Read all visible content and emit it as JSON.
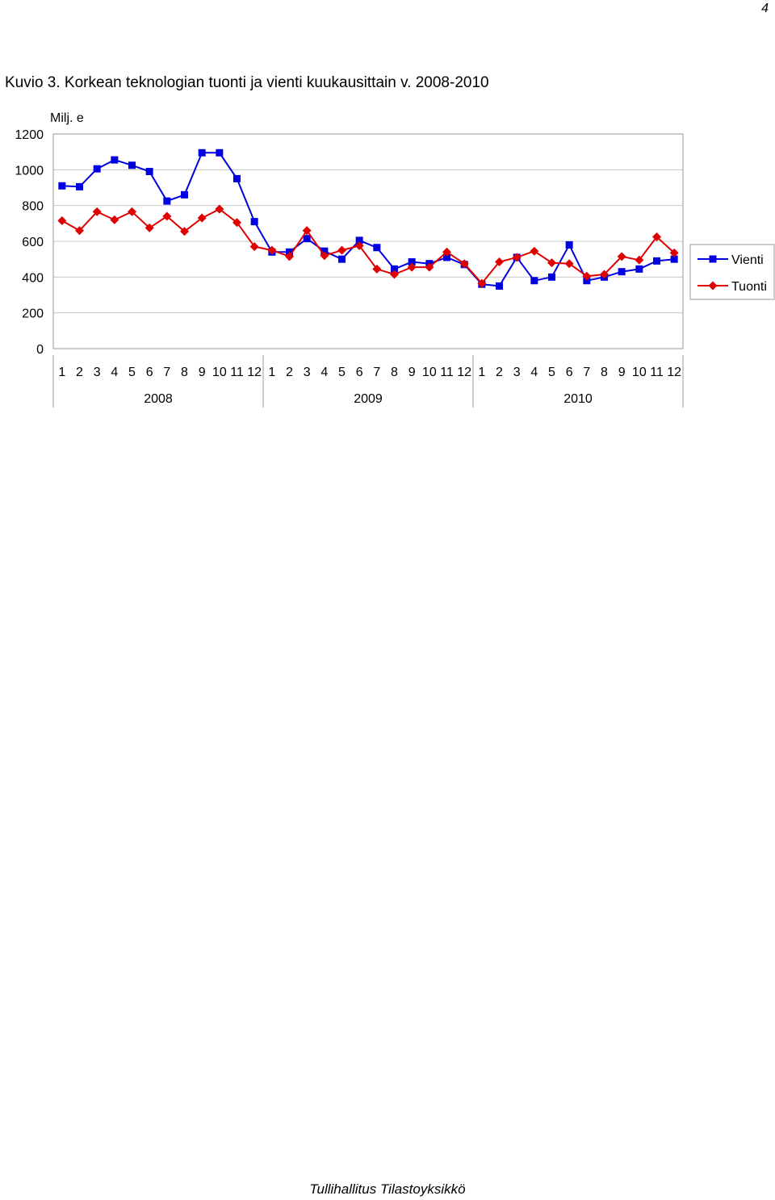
{
  "page_number": "4",
  "figure_title": "Kuvio 3. Korkean teknologian tuonti ja vienti kuukausittain v. 2008-2010",
  "footer": "Tullihallitus Tilastoyksikkö",
  "chart_data": {
    "type": "line",
    "title": "",
    "ylabel": "Milj. e",
    "xlabel": "",
    "ylim": [
      0,
      1200
    ],
    "yticks": [
      0,
      200,
      400,
      600,
      800,
      1000,
      1200
    ],
    "grid": "horizontal",
    "legend": "right",
    "categories": [
      "1",
      "2",
      "3",
      "4",
      "5",
      "6",
      "7",
      "8",
      "9",
      "10",
      "11",
      "12",
      "1",
      "2",
      "3",
      "4",
      "5",
      "6",
      "7",
      "8",
      "9",
      "10",
      "11",
      "12",
      "1",
      "2",
      "3",
      "4",
      "5",
      "6",
      "7",
      "8",
      "9",
      "10",
      "11",
      "12"
    ],
    "groups": [
      {
        "label": "2008",
        "count": 12
      },
      {
        "label": "2009",
        "count": 12
      },
      {
        "label": "2010",
        "count": 12
      }
    ],
    "series": [
      {
        "name": "Vienti",
        "color": "#0000e0",
        "marker": "square",
        "values": [
          910,
          905,
          1005,
          1055,
          1025,
          990,
          825,
          860,
          1095,
          1095,
          950,
          710,
          540,
          540,
          615,
          545,
          500,
          605,
          565,
          445,
          485,
          475,
          510,
          470,
          360,
          350,
          510,
          380,
          400,
          580,
          380,
          400,
          430,
          445,
          490,
          500
        ]
      },
      {
        "name": "Tuonti",
        "color": "#e00000",
        "marker": "diamond",
        "values": [
          715,
          660,
          765,
          720,
          765,
          675,
          740,
          655,
          730,
          780,
          705,
          570,
          550,
          515,
          660,
          520,
          550,
          575,
          445,
          415,
          455,
          455,
          540,
          475,
          365,
          485,
          510,
          545,
          480,
          475,
          405,
          415,
          515,
          495,
          625,
          535
        ]
      }
    ]
  }
}
